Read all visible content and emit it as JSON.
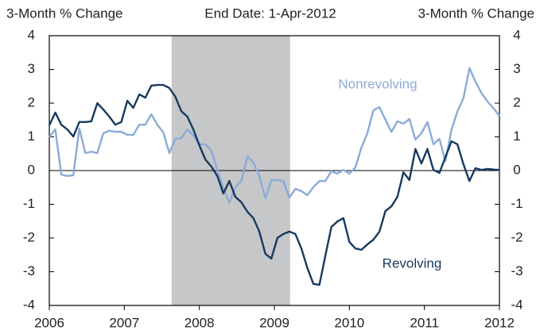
{
  "chart_data": {
    "type": "line",
    "title": "End Date: 1-Apr-2012",
    "y_label": "3-Month % Change",
    "y2_label": "3-Month % Change",
    "annotations": [
      "Nonrevolving",
      "Revolving"
    ],
    "shaded_range": [
      2007.63,
      2009.21
    ],
    "x": [
      2006,
      2006.08,
      2006.16,
      2006.24,
      2006.32,
      2006.4,
      2006.48,
      2006.56,
      2006.64,
      2006.72,
      2006.8,
      2006.88,
      2006.96,
      2007.04,
      2007.12,
      2007.2,
      2007.28,
      2007.36,
      2007.44,
      2007.52,
      2007.6,
      2007.68,
      2007.76,
      2007.84,
      2007.92,
      2008,
      2008.08,
      2008.16,
      2008.24,
      2008.32,
      2008.4,
      2008.48,
      2008.56,
      2008.64,
      2008.72,
      2008.8,
      2008.88,
      2008.96,
      2009.04,
      2009.12,
      2009.2,
      2009.28,
      2009.36,
      2009.44,
      2009.52,
      2009.6,
      2009.68,
      2009.76,
      2009.84,
      2009.92,
      2010,
      2010.08,
      2010.16,
      2010.24,
      2010.32,
      2010.4,
      2010.48,
      2010.56,
      2010.64,
      2010.72,
      2010.8,
      2010.88,
      2010.96,
      2011.04,
      2011.12,
      2011.2,
      2011.28,
      2011.36,
      2011.44,
      2011.52,
      2011.6,
      2011.68,
      2011.76,
      2011.84,
      2011.92,
      2012
    ],
    "series": [
      {
        "name": "Revolving",
        "color": "#163a5f",
        "values": [
          1.34,
          1.72,
          1.36,
          1.22,
          1.01,
          1.44,
          1.44,
          1.46,
          2.0,
          1.81,
          1.6,
          1.36,
          1.44,
          2.07,
          1.86,
          2.26,
          2.16,
          2.52,
          2.54,
          2.54,
          2.45,
          2.19,
          1.76,
          1.6,
          1.22,
          0.75,
          0.33,
          0.12,
          -0.16,
          -0.68,
          -0.31,
          -0.78,
          -0.94,
          -1.22,
          -1.41,
          -1.81,
          -2.47,
          -2.61,
          -2.0,
          -1.88,
          -1.81,
          -1.88,
          -2.31,
          -2.89,
          -3.36,
          -3.39,
          -2.52,
          -1.67,
          -1.51,
          -1.41,
          -2.12,
          -2.31,
          -2.35,
          -2.19,
          -2.05,
          -1.81,
          -1.2,
          -1.06,
          -0.78,
          -0.05,
          -0.28,
          0.64,
          0.21,
          0.64,
          0.02,
          -0.07,
          0.4,
          0.87,
          0.78,
          0.19,
          -0.31,
          0.07,
          0.02,
          0.05,
          0.03,
          0.02
        ]
      },
      {
        "name": "Nonrevolving",
        "color": "#8aabd6",
        "values": [
          0.99,
          1.22,
          -0.12,
          -0.16,
          -0.14,
          1.25,
          0.52,
          0.56,
          0.52,
          1.11,
          1.18,
          1.15,
          1.15,
          1.06,
          1.06,
          1.36,
          1.36,
          1.67,
          1.36,
          1.13,
          0.52,
          0.94,
          0.96,
          1.22,
          1.04,
          0.78,
          0.78,
          0.59,
          0.02,
          -0.52,
          -0.96,
          -0.49,
          -0.31,
          0.42,
          0.24,
          -0.16,
          -0.82,
          -0.28,
          -0.28,
          -0.31,
          -0.8,
          -0.54,
          -0.61,
          -0.73,
          -0.49,
          -0.31,
          -0.31,
          -0.02,
          -0.09,
          0.02,
          -0.09,
          0.09,
          0.68,
          1.11,
          1.79,
          1.88,
          1.51,
          1.15,
          1.46,
          1.39,
          1.53,
          0.92,
          1.11,
          1.44,
          0.78,
          0.94,
          0.28,
          1.2,
          1.76,
          2.14,
          3.04,
          2.64,
          2.3,
          2.05,
          1.85,
          1.62
        ]
      }
    ],
    "xlim": [
      2006,
      2012
    ],
    "xticks": [
      2006,
      2007,
      2008,
      2009,
      2010,
      2011,
      2012
    ],
    "ylim": [
      -4,
      4
    ],
    "yticks": [
      -4,
      -3,
      -2,
      -1,
      0,
      1,
      2,
      3,
      4
    ],
    "y2lim": [
      -4,
      4
    ],
    "y2ticks": [
      -4,
      -3,
      -2,
      -1,
      0,
      1,
      2,
      3,
      4
    ],
    "shade_color": "#c6c7c9"
  }
}
